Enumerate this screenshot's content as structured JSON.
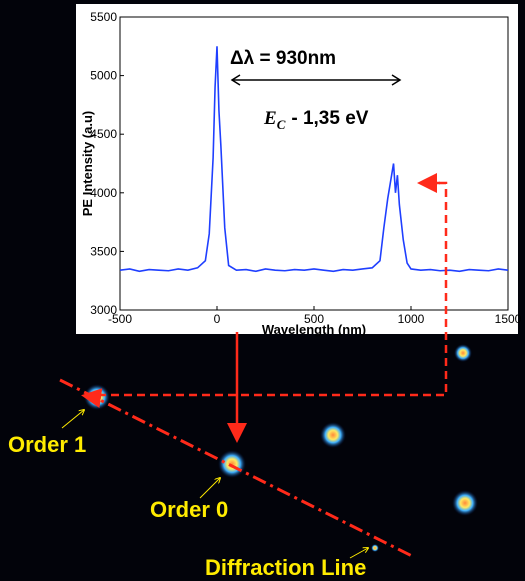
{
  "chart_data": {
    "type": "line",
    "annotations": {
      "delta": "Δλ = 930nm",
      "energy_symbol": "E",
      "energy_sub": "C",
      "energy_rest": "- 1,35 eV"
    },
    "x_label": "Wavelength (nm)",
    "y_label": "PE Intensity (a.u)",
    "x": [
      -500,
      -450,
      -400,
      -350,
      -300,
      -250,
      -200,
      -150,
      -100,
      -60,
      -40,
      -20,
      -10,
      0,
      10,
      20,
      40,
      60,
      100,
      150,
      200,
      250,
      300,
      350,
      400,
      450,
      500,
      550,
      600,
      650,
      700,
      750,
      800,
      840,
      860,
      880,
      900,
      910,
      920,
      930,
      940,
      960,
      980,
      1000,
      1050,
      1100,
      1150,
      1200,
      1250,
      1300,
      1350,
      1400,
      1450,
      1500
    ],
    "series": [
      {
        "color": "#1f3fff",
        "values": [
          3340,
          3350,
          3330,
          3345,
          3340,
          3335,
          3350,
          3340,
          3360,
          3420,
          3650,
          4300,
          4900,
          5250,
          4700,
          4400,
          3700,
          3380,
          3340,
          3345,
          3330,
          3350,
          3340,
          3335,
          3345,
          3340,
          3350,
          3340,
          3330,
          3345,
          3340,
          3350,
          3360,
          3420,
          3700,
          3950,
          4150,
          4250,
          4000,
          4150,
          3900,
          3600,
          3400,
          3350,
          3340,
          3345,
          3335,
          3340,
          3330,
          3345,
          3340,
          3335,
          3350,
          3340
        ]
      }
    ],
    "xlim": [
      -500,
      1500
    ],
    "ylim": [
      3000,
      5500
    ],
    "xticks": [
      -500,
      0,
      500,
      1000,
      1500
    ],
    "yticks": [
      3000,
      3500,
      4000,
      4500,
      5000,
      5500
    ]
  },
  "image_labels": {
    "order1": "Order 1",
    "order0": "Order 0",
    "line": "Diffraction Line"
  }
}
